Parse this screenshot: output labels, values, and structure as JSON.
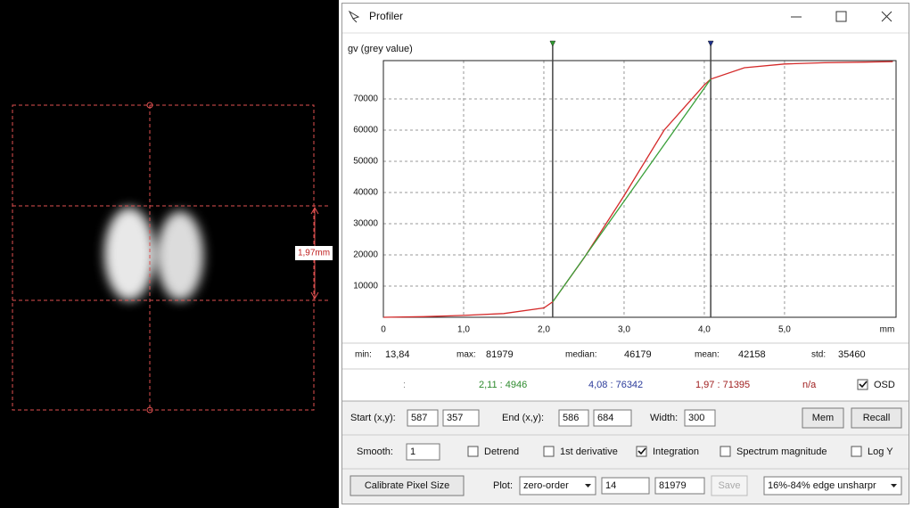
{
  "image": {
    "measurement_label": "1,97mm"
  },
  "window": {
    "title": "Profiler"
  },
  "chart_data": {
    "type": "line",
    "ylabel": "gv (grey value)",
    "xlabel": "mm",
    "x": [
      0,
      0.5,
      1,
      1.5,
      2,
      2.11,
      2.5,
      3,
      3.5,
      4,
      4.08,
      4.5,
      5,
      5.5,
      6,
      6.35
    ],
    "series": [
      {
        "color": "#d42a2a",
        "values": [
          14,
          200,
          600,
          1200,
          3000,
          4946,
          19000,
          39000,
          60000,
          74500,
          76342,
          80000,
          81200,
          81600,
          81800,
          81979
        ]
      },
      {
        "color": "#3aa03a",
        "values": [
          null,
          null,
          null,
          null,
          null,
          4946,
          19080,
          37200,
          55320,
          73440,
          76342,
          null,
          null,
          null,
          null,
          null
        ]
      }
    ],
    "cursors": [
      {
        "value": 2.11,
        "color": "#2e9a2e"
      },
      {
        "value": 4.08,
        "color": "#1d2f8c"
      }
    ],
    "xlim": [
      0,
      6.39
    ],
    "ylim": [
      0,
      82300
    ],
    "xticks": [
      0,
      {
        "value": 1,
        "label": "1,0"
      },
      {
        "value": 2,
        "label": "2,0"
      },
      {
        "value": 3,
        "label": "3,0"
      },
      {
        "value": 4,
        "label": "4,0"
      },
      {
        "value": 5,
        "label": "5,0"
      }
    ],
    "yticks": [
      10000,
      20000,
      30000,
      40000,
      50000,
      60000,
      70000
    ],
    "grid": true
  },
  "stats": [
    {
      "label": "min:",
      "value": "13,84"
    },
    {
      "label": "max:",
      "value": "81979"
    },
    {
      "label": "median:",
      "value": "46179"
    },
    {
      "label": "mean:",
      "value": "42158"
    },
    {
      "label": "std:",
      "value": "35460"
    }
  ],
  "status": [
    {
      "text": ":",
      "color": "#888888"
    },
    {
      "text": "2,11 : 4946",
      "color": "#2e8b2e"
    },
    {
      "text": "4,08 : 76342",
      "color": "#2a3a9a"
    },
    {
      "text": "1,97 : 71395",
      "color": "#a02020"
    },
    {
      "text": "n/a",
      "color": "#a02020"
    }
  ],
  "osd": {
    "label": "OSD",
    "checked": true
  },
  "controls": {
    "start_label": "Start (x,y):",
    "start_x": "587",
    "start_y": "357",
    "end_label": "End (x,y):",
    "end_x": "586",
    "end_y": "684",
    "width_label": "Width:",
    "width": "300",
    "mem": "Mem",
    "recall": "Recall",
    "smooth_label": "Smooth:",
    "smooth": "1",
    "checks": [
      {
        "label": "Detrend",
        "checked": false
      },
      {
        "label": "1st derivative",
        "checked": false
      },
      {
        "label": "Integration",
        "checked": true
      },
      {
        "label": "Spectrum magnitude",
        "checked": false
      },
      {
        "label": "Log Y",
        "checked": false
      }
    ],
    "calibrate": "Calibrate Pixel Size",
    "plot_label": "Plot:",
    "plot": "zero-order",
    "plot_min": "14",
    "plot_max": "81979",
    "save": "Save",
    "mode": "16%-84% edge unsharpr"
  }
}
